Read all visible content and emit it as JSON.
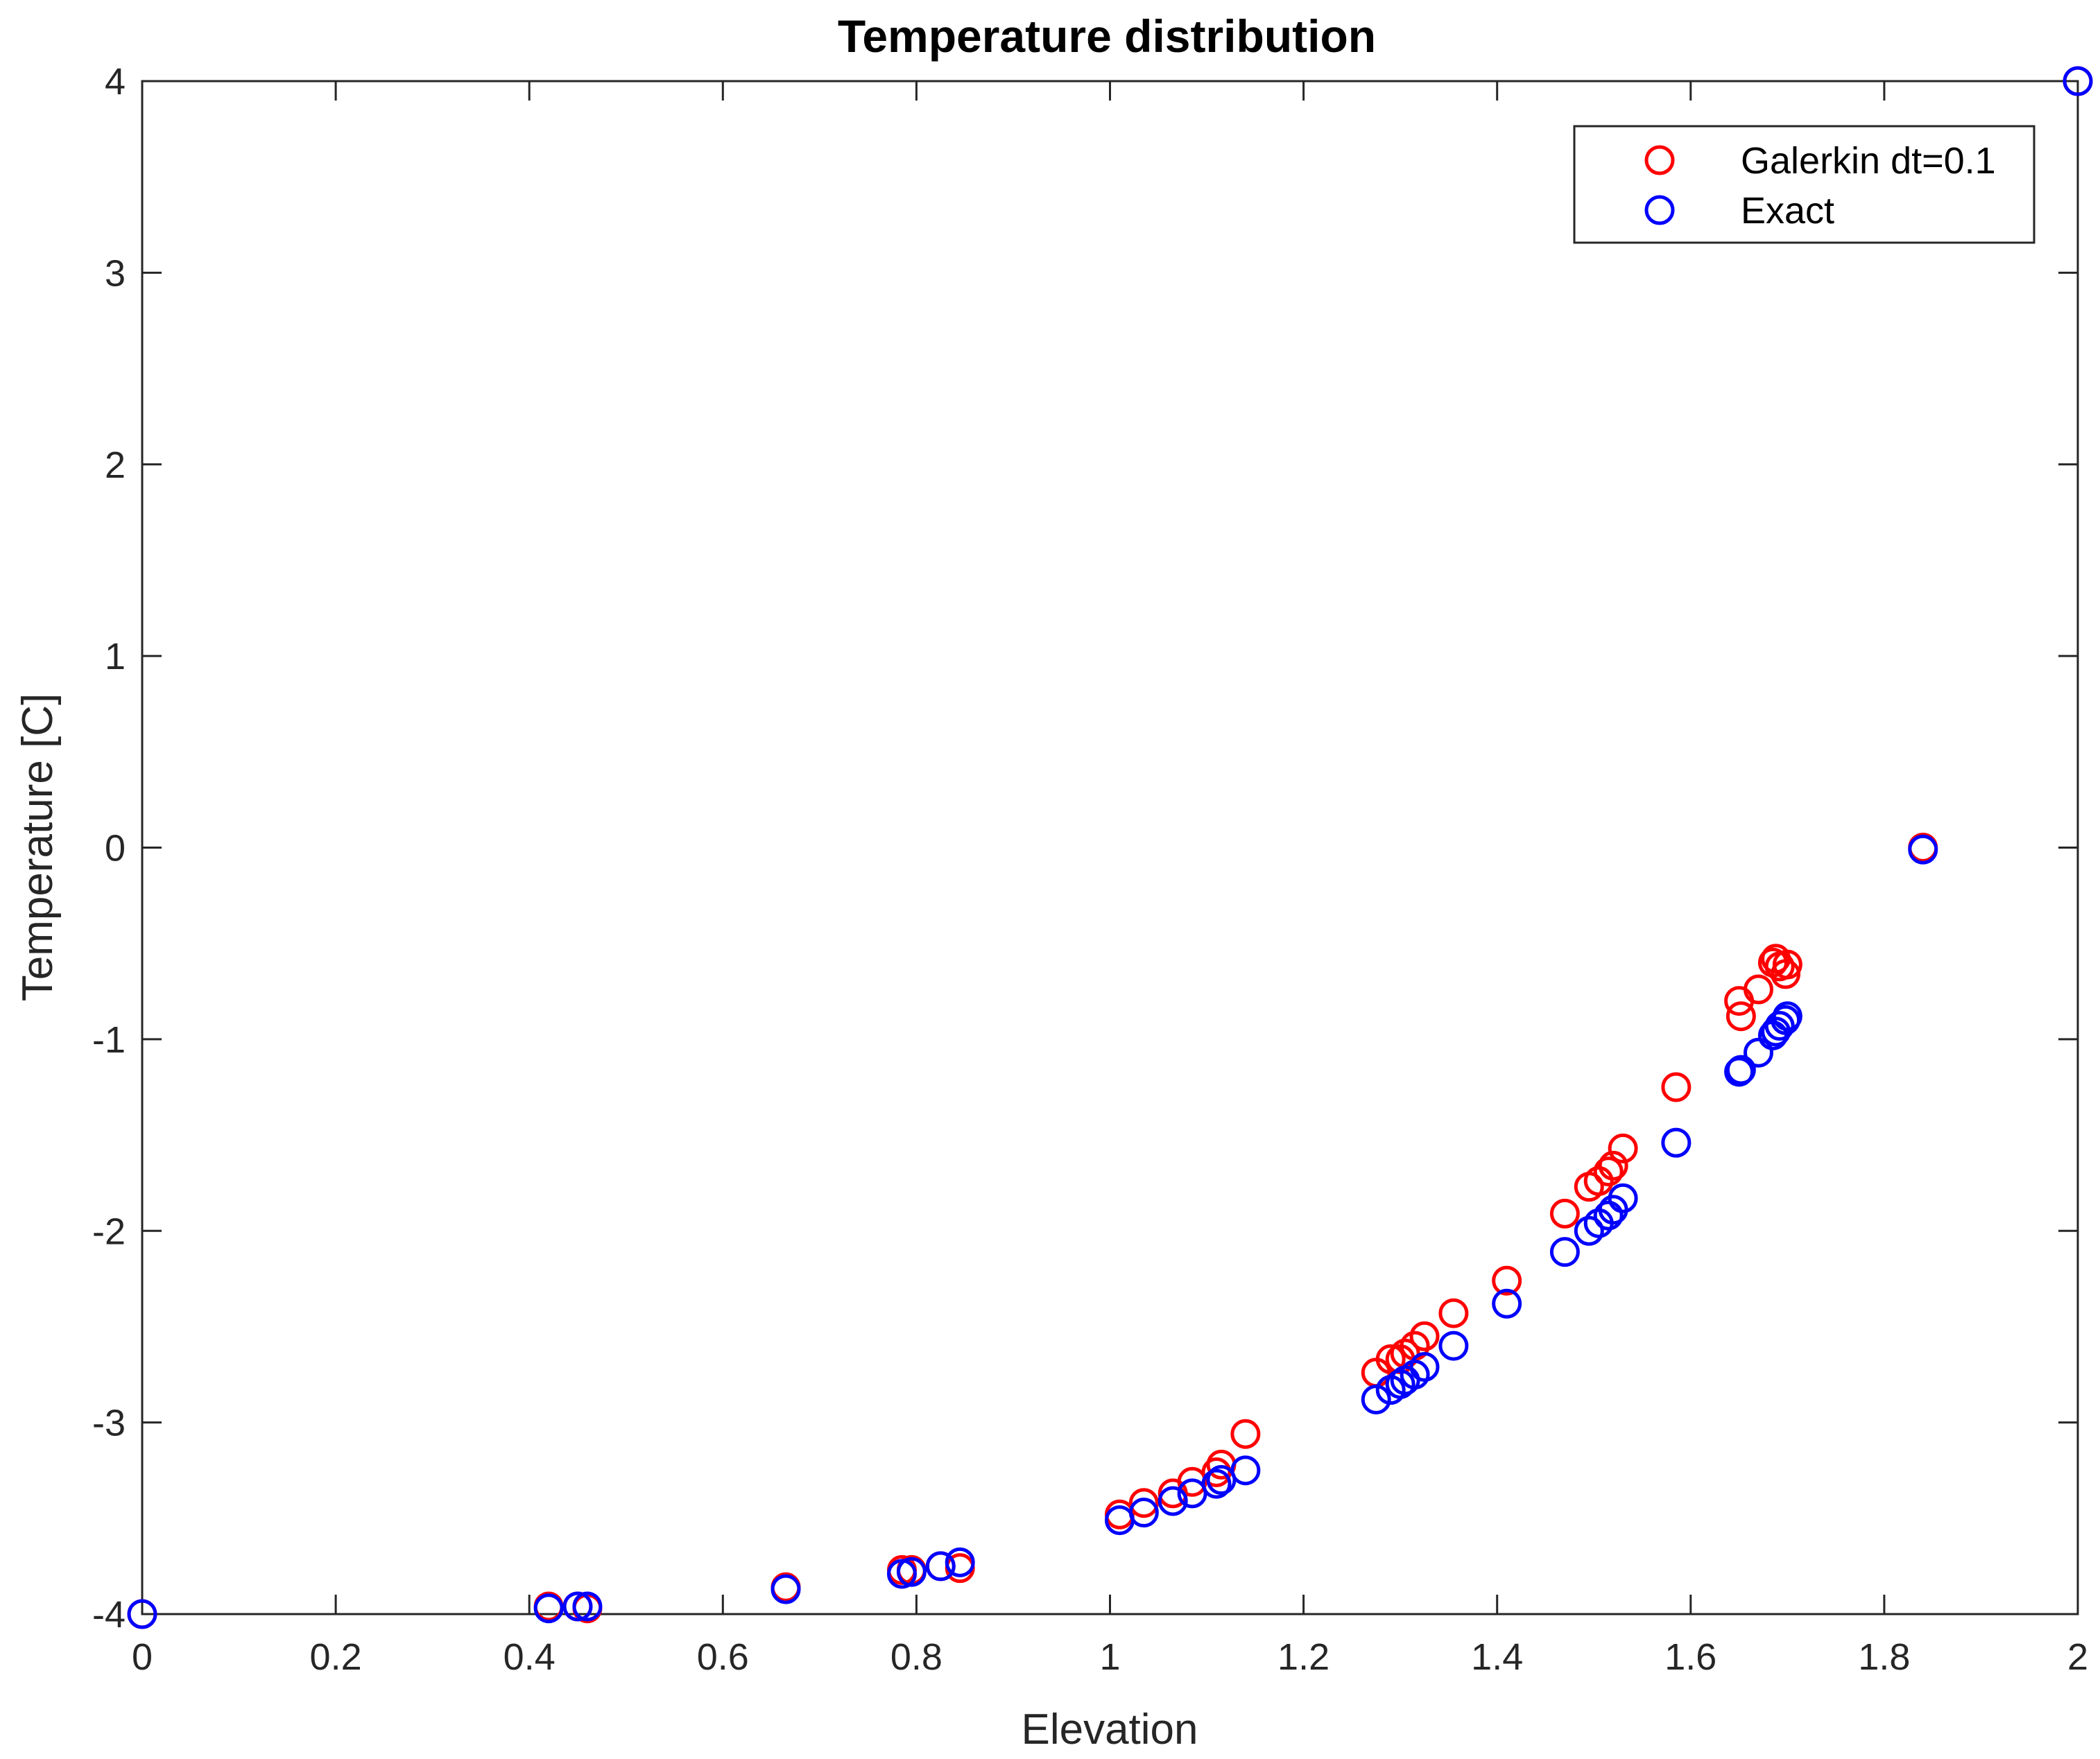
{
  "chart_data": {
    "type": "scatter",
    "title": "Temperature distribution",
    "xlabel": "Elevation",
    "ylabel": "Temperature [C]",
    "xlim": [
      0,
      2
    ],
    "ylim": [
      -4,
      4
    ],
    "xticks": [
      0,
      0.2,
      0.4,
      0.6,
      0.8,
      1,
      1.2,
      1.4,
      1.6,
      1.8,
      2
    ],
    "xtick_labels": [
      "0",
      "0.2",
      "0.4",
      "0.6",
      "0.8",
      "1",
      "1.2",
      "1.4",
      "1.6",
      "1.8",
      "2"
    ],
    "yticks": [
      -4,
      -3,
      -2,
      -1,
      0,
      1,
      2,
      3,
      4
    ],
    "ytick_labels": [
      "-4",
      "-3",
      "-2",
      "-1",
      "0",
      "1",
      "2",
      "3",
      "4"
    ],
    "grid": false,
    "legend_position": "top-right",
    "series": [
      {
        "name": "Galerkin dt=0.1",
        "color": "#ff0000",
        "marker": "circle-open",
        "x": [
          0.0,
          0.42,
          0.45,
          0.46,
          0.665,
          0.785,
          0.795,
          0.825,
          0.845,
          1.01,
          1.035,
          1.065,
          1.085,
          1.11,
          1.115,
          1.14,
          1.275,
          1.29,
          1.3,
          1.305,
          1.315,
          1.325,
          1.355,
          1.41,
          1.47,
          1.495,
          1.505,
          1.515,
          1.52,
          1.53,
          1.585,
          1.65,
          1.652,
          1.67,
          1.685,
          1.688,
          1.692,
          1.698,
          1.7,
          1.84,
          2.0
        ],
        "y": [
          -4.0,
          -3.96,
          -3.96,
          -3.97,
          -3.86,
          -3.77,
          -3.77,
          -3.75,
          -3.76,
          -3.48,
          -3.42,
          -3.37,
          -3.31,
          -3.26,
          -3.22,
          -3.06,
          -2.74,
          -2.67,
          -2.67,
          -2.64,
          -2.6,
          -2.55,
          -2.43,
          -2.26,
          -1.91,
          -1.77,
          -1.74,
          -1.69,
          -1.66,
          -1.57,
          -1.25,
          -0.8,
          -0.88,
          -0.74,
          -0.6,
          -0.58,
          -0.62,
          -0.66,
          -0.61,
          0.0,
          4.0
        ]
      },
      {
        "name": "Exact",
        "color": "#0000ff",
        "marker": "circle-open",
        "x": [
          0.0,
          0.42,
          0.45,
          0.46,
          0.665,
          0.785,
          0.795,
          0.825,
          0.845,
          1.01,
          1.035,
          1.065,
          1.085,
          1.11,
          1.115,
          1.14,
          1.275,
          1.29,
          1.3,
          1.305,
          1.315,
          1.325,
          1.355,
          1.41,
          1.47,
          1.495,
          1.505,
          1.515,
          1.52,
          1.53,
          1.585,
          1.65,
          1.652,
          1.67,
          1.685,
          1.688,
          1.692,
          1.698,
          1.7,
          1.84,
          2.0
        ],
        "y": [
          -4.0,
          -3.97,
          -3.96,
          -3.96,
          -3.87,
          -3.79,
          -3.78,
          -3.75,
          -3.73,
          -3.51,
          -3.47,
          -3.41,
          -3.37,
          -3.32,
          -3.3,
          -3.25,
          -2.88,
          -2.83,
          -2.8,
          -2.78,
          -2.75,
          -2.71,
          -2.6,
          -2.38,
          -2.11,
          -2.0,
          -1.96,
          -1.92,
          -1.89,
          -1.83,
          -1.54,
          -1.17,
          -1.16,
          -1.07,
          -0.98,
          -0.96,
          -0.93,
          -0.9,
          -0.88,
          -0.01,
          4.0
        ]
      }
    ]
  }
}
